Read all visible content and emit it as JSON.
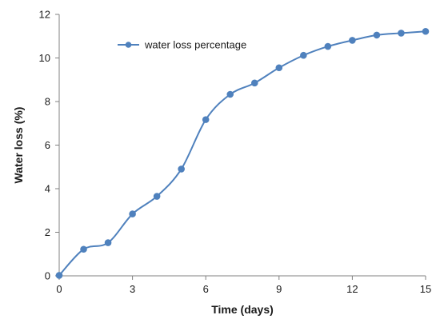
{
  "chart_data": {
    "type": "line",
    "title": "",
    "xlabel": "Time (days)",
    "ylabel": "Water loss (%)",
    "xlim": [
      0,
      15
    ],
    "ylim": [
      0,
      12
    ],
    "x_ticks": [
      0,
      3,
      6,
      9,
      12,
      15
    ],
    "y_ticks": [
      0,
      2,
      4,
      6,
      8,
      10,
      12
    ],
    "grid": false,
    "legend_position": "top-left",
    "smooth": true,
    "series": [
      {
        "name": "water loss percentage",
        "color": "#4f81bd",
        "marker": "circle",
        "x": [
          0,
          1,
          2,
          3,
          4,
          5,
          6,
          7,
          8,
          9,
          10,
          11,
          12,
          13,
          14,
          15
        ],
        "y": [
          0.02,
          1.22,
          1.52,
          2.84,
          3.65,
          4.9,
          7.17,
          8.33,
          8.85,
          9.55,
          10.12,
          10.53,
          10.81,
          11.05,
          11.14,
          11.22
        ]
      }
    ]
  }
}
